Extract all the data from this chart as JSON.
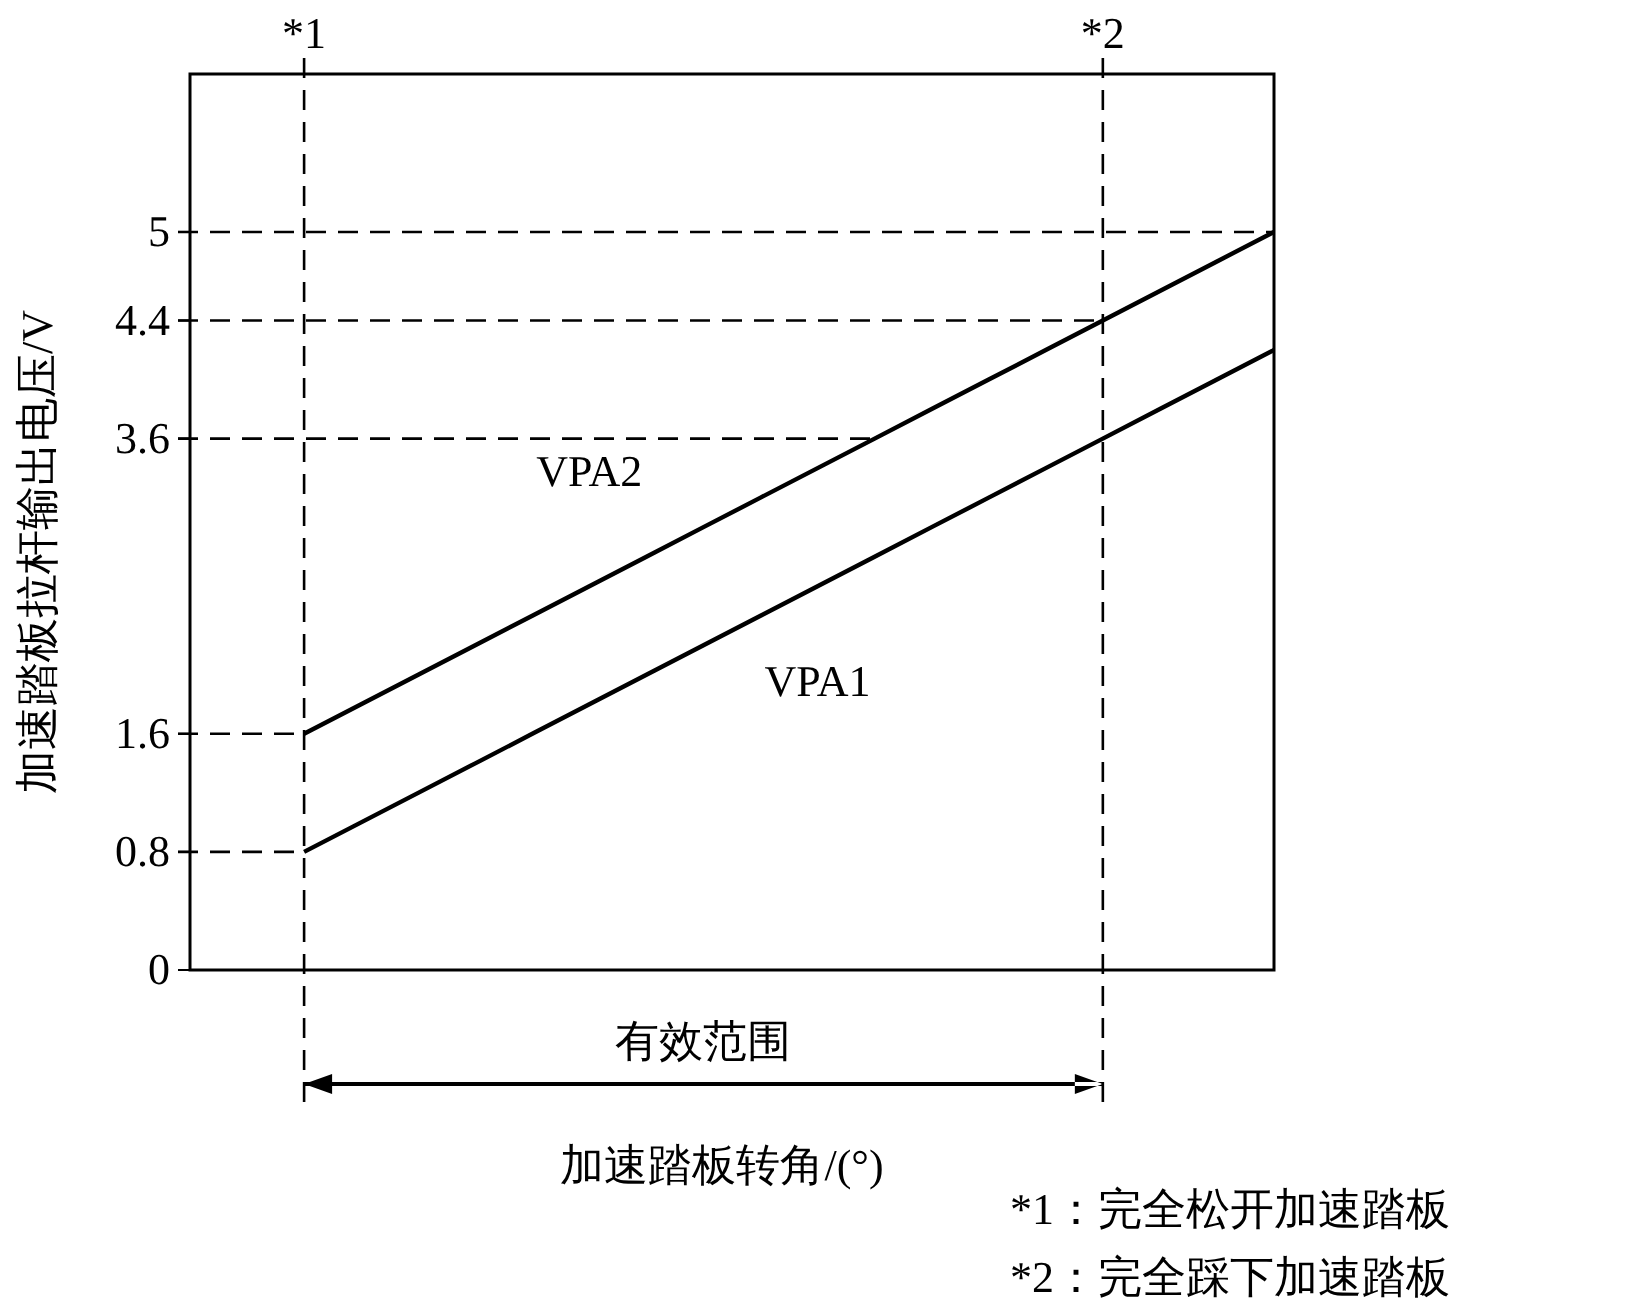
{
  "chart_data": {
    "type": "line",
    "xlabel": "加速踏板转角/(°)",
    "ylabel": "加速踏板拉杆输出电压/V",
    "categories": [
      null,
      null,
      "*1",
      null,
      null,
      null,
      null,
      null,
      null,
      null,
      null,
      null,
      null,
      null,
      null,
      null,
      "*2",
      null,
      null,
      null
    ],
    "ylim": [
      0,
      6.07
    ],
    "yticks": [
      0,
      0.8,
      1.6,
      3.6,
      4.4,
      5
    ],
    "grid": false,
    "legend": false,
    "line_style": "solid",
    "marker": "none",
    "series": [
      {
        "name": "VPA1",
        "color": "#000000",
        "values": [
          null,
          null,
          0.8,
          1.0,
          1.2,
          1.4,
          1.6,
          1.8,
          2.0,
          2.2,
          2.4,
          2.6,
          2.8,
          3.0,
          3.2,
          3.4,
          3.6,
          3.8,
          4.0,
          4.2
        ]
      },
      {
        "name": "VPA2",
        "color": "#000000",
        "values": [
          null,
          null,
          1.6,
          1.8,
          2.0,
          2.2,
          2.4,
          2.6,
          2.8,
          3.0,
          3.2,
          3.4,
          3.6,
          3.8,
          4.0,
          4.2,
          4.4,
          4.6,
          4.8,
          5.0
        ]
      }
    ],
    "ref_lines": [
      {
        "axis": "x",
        "value": "*1",
        "line_style": "dashed"
      },
      {
        "axis": "x",
        "value": "*2",
        "line_style": "dashed"
      },
      {
        "axis": "y",
        "value": 0.8,
        "line_style": "dashed"
      },
      {
        "axis": "y",
        "value": 1.6,
        "line_style": "dashed"
      },
      {
        "axis": "y",
        "value": 3.6,
        "line_style": "dashed"
      },
      {
        "axis": "y",
        "value": 4.4,
        "line_style": "dashed"
      },
      {
        "axis": "y",
        "value": 5,
        "line_style": "dashed"
      }
    ],
    "annotations": [
      "有效范围",
      "*1：完全松开加速踏板",
      "*2：完全踩下加速踏板"
    ]
  }
}
